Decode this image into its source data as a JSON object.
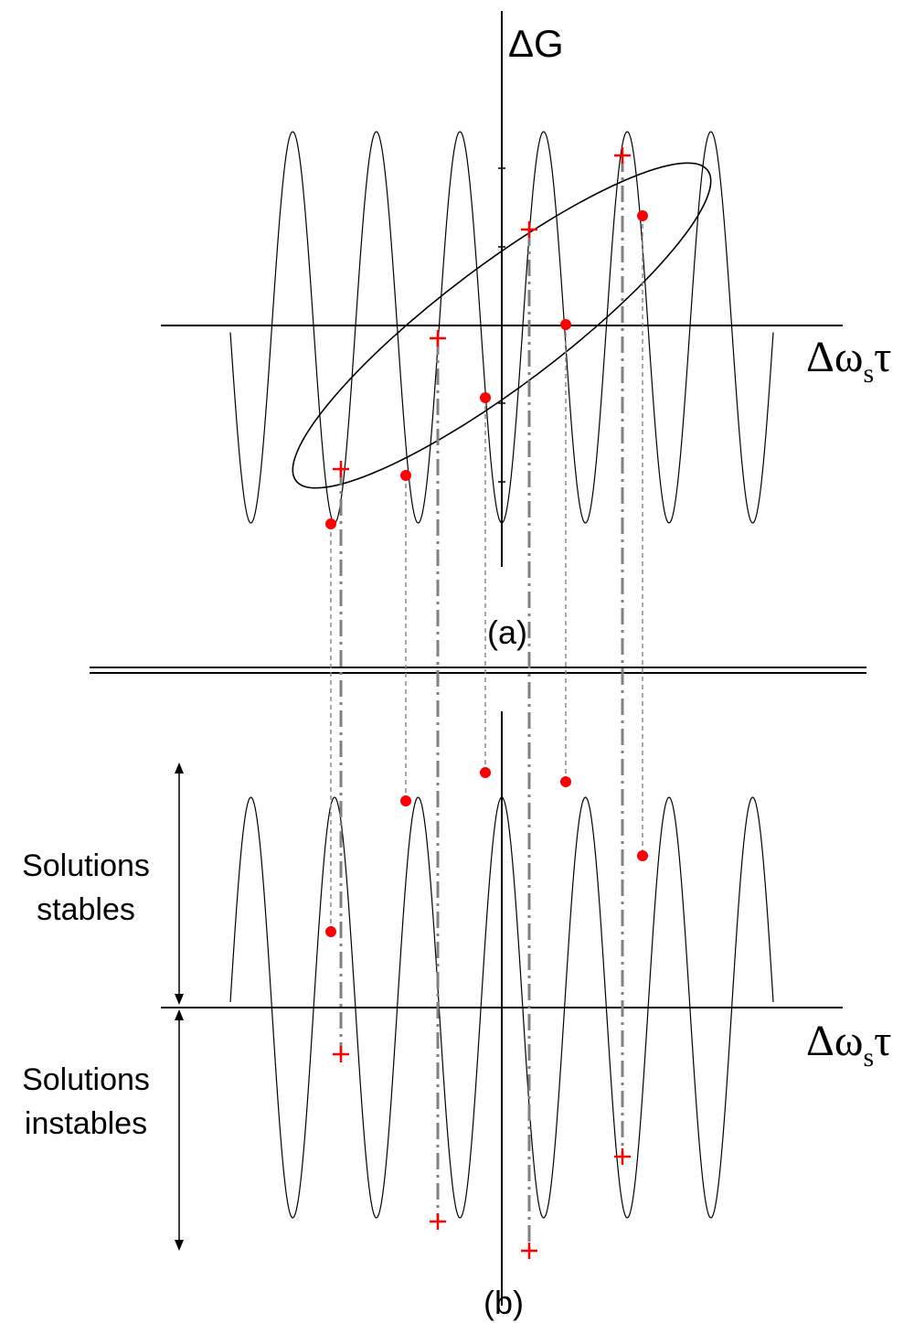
{
  "panel_a": {
    "y_axis_label": "ΔG",
    "x_axis_label_main": "Δω",
    "x_axis_label_sub": "s",
    "x_axis_label_tail": "τ",
    "caption": "(a)"
  },
  "panel_b": {
    "x_axis_label_main": "Δω",
    "x_axis_label_sub": "s",
    "x_axis_label_tail": "τ",
    "caption": "(b)",
    "stable_label_line1": "Solutions",
    "stable_label_line2": "stables",
    "unstable_label_line1": "Solutions",
    "unstable_label_line2": "instables"
  },
  "colors": {
    "curve": "#000000",
    "marker": "#ff0000",
    "guide_dashed": "#8c8c8c",
    "guide_dashdot": "#808080"
  }
}
